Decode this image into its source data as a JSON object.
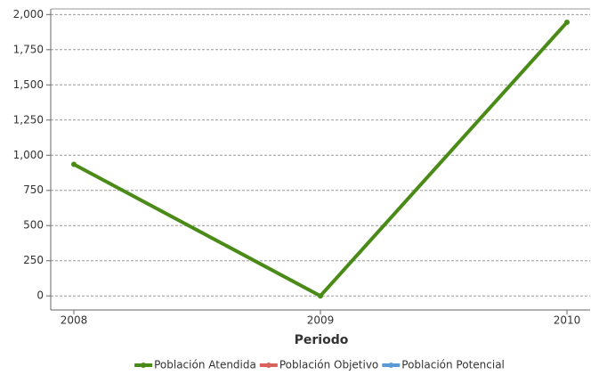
{
  "chart_data": {
    "type": "line",
    "x_label": "Periodo",
    "categories": [
      "2008",
      "2009",
      "2010"
    ],
    "series": [
      {
        "name": "Población Atendida",
        "color": "#4a8b17",
        "values": [
          935,
          0,
          1945
        ]
      },
      {
        "name": "Población Objetivo",
        "color": "#d9625e",
        "values": [
          null,
          null,
          null
        ]
      },
      {
        "name": "Población Potencial",
        "color": "#5b9bd5",
        "values": [
          null,
          null,
          null
        ]
      }
    ],
    "ylim": [
      -100,
      2040
    ],
    "yticks": [
      0,
      250,
      500,
      750,
      {
        "value": 1000,
        "label": "1,000"
      },
      {
        "value": 1250,
        "label": "1,250"
      },
      {
        "value": 1500,
        "label": "1,500"
      },
      {
        "value": 1750,
        "label": "1,750"
      },
      {
        "value": 2000,
        "label": "2,000"
      }
    ],
    "grid": true
  }
}
